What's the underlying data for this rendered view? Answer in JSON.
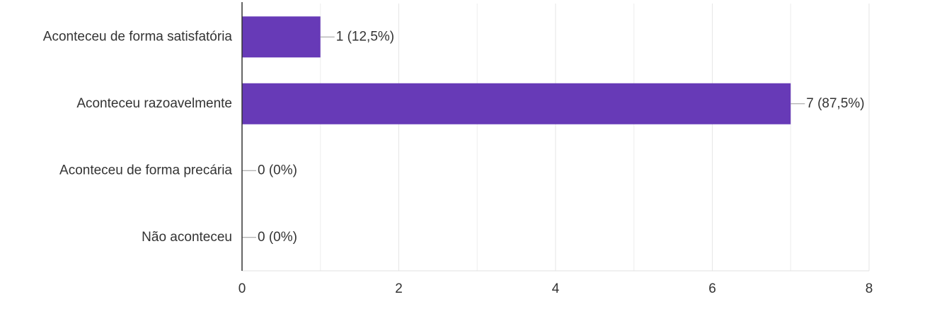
{
  "chart_data": {
    "type": "barh",
    "categories": [
      "Aconteceu de forma satisfatória",
      "Aconteceu razoavelmente",
      "Aconteceu de forma precária",
      "Não aconteceu"
    ],
    "values": [
      1,
      7,
      0,
      0
    ],
    "value_labels": [
      "1 (12,5%)",
      "7 (87,5%)",
      "0 (0%)",
      "0 (0%)"
    ],
    "color": "#673ab7",
    "xlim": [
      0,
      8
    ],
    "xticks": [
      0,
      2,
      4,
      6,
      8
    ],
    "grid": true
  }
}
